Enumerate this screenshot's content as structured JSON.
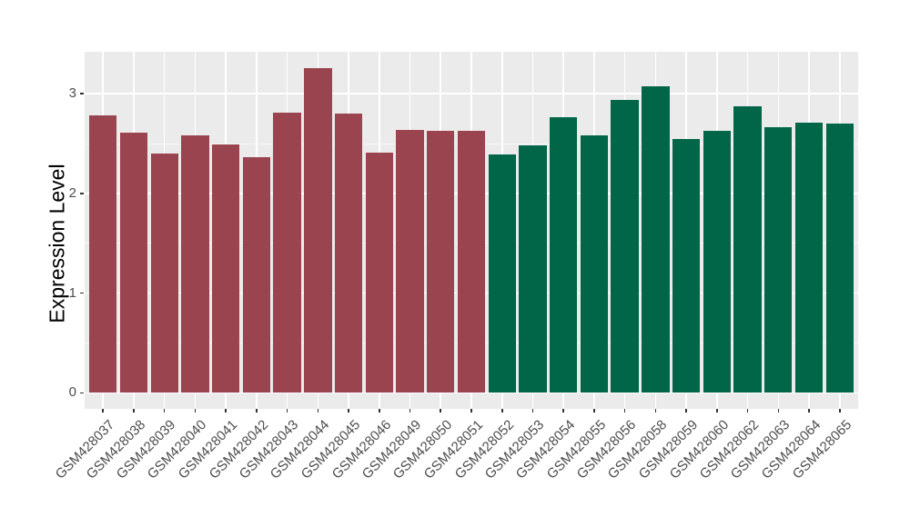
{
  "figure": {
    "background": "#ffffff",
    "panel_background": "#ebebeb",
    "grid_color": "#ffffff",
    "tick_label_color": "#4d4d4d",
    "axis_title_color": "#000000"
  },
  "chart_data": {
    "type": "bar",
    "title": "",
    "xlabel": "",
    "ylabel": "Expression Level",
    "categories": [
      "GSM428037",
      "GSM428038",
      "GSM428039",
      "GSM428040",
      "GSM428041",
      "GSM428042",
      "GSM428043",
      "GSM428044",
      "GSM428045",
      "GSM428046",
      "GSM428049",
      "GSM428050",
      "GSM428051",
      "GSM428052",
      "GSM428053",
      "GSM428054",
      "GSM428055",
      "GSM428056",
      "GSM428058",
      "GSM428059",
      "GSM428060",
      "GSM428062",
      "GSM428063",
      "GSM428064",
      "GSM428065"
    ],
    "values": [
      2.78,
      2.61,
      2.4,
      2.58,
      2.49,
      2.36,
      2.81,
      3.26,
      2.8,
      2.41,
      2.64,
      2.63,
      2.63,
      2.39,
      2.48,
      2.76,
      2.58,
      2.94,
      3.07,
      2.55,
      2.63,
      2.87,
      2.66,
      2.71,
      2.7
    ],
    "groups": [
      "g1",
      "g1",
      "g1",
      "g1",
      "g1",
      "g1",
      "g1",
      "g1",
      "g1",
      "g1",
      "g1",
      "g1",
      "g1",
      "g2",
      "g2",
      "g2",
      "g2",
      "g2",
      "g2",
      "g2",
      "g2",
      "g2",
      "g2",
      "g2",
      "g2"
    ],
    "group_colors": {
      "g1": "#9a4450",
      "g2": "#006647"
    },
    "yticks": [
      0,
      1,
      2,
      3
    ],
    "ytick_labels": [
      "0",
      "1",
      "2",
      "3"
    ],
    "minor_yticks": [
      0.5,
      1.5,
      2.5
    ],
    "ylim": [
      -0.16,
      3.42
    ],
    "grid": "on",
    "legend_position": "none",
    "x_label_angle": 45
  }
}
